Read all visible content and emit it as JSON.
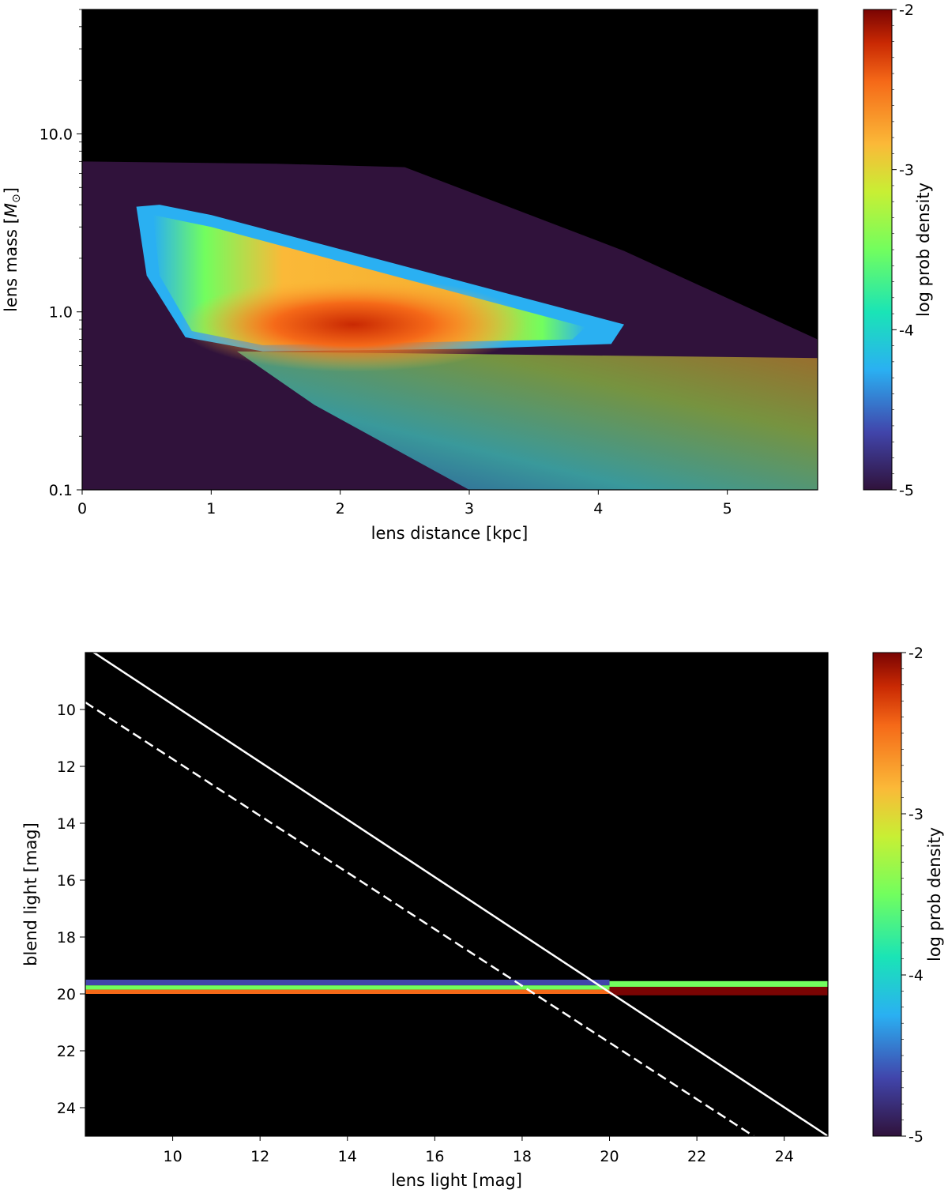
{
  "chart_data": [
    {
      "type": "heatmap",
      "title": "",
      "xlabel": "lens distance [kpc]",
      "ylabel": "lens mass [",
      "ylabel_symbol": "M",
      "ylabel_sub": "⊙",
      "ylabel_end": "]",
      "x_range": [
        0,
        5.7
      ],
      "y_range": [
        0.1,
        50
      ],
      "y_scale": "log",
      "x_ticks": [
        0,
        1,
        2,
        3,
        4,
        5
      ],
      "x_tick_labels": [
        "0",
        "1",
        "2",
        "3",
        "4",
        "5"
      ],
      "y_ticks": [
        0.1,
        1.0,
        10.0
      ],
      "y_tick_labels": [
        "0.1",
        "1.0",
        "10.0"
      ],
      "colorbar": {
        "label": "log prob density",
        "range": [
          -5,
          -2
        ],
        "ticks": [
          -2,
          -3,
          -4,
          -5
        ],
        "tick_labels": [
          "-2",
          "-3",
          "-4",
          "-5"
        ],
        "colormap": "turbo"
      },
      "features": [
        {
          "name": "main population peak",
          "x": 2.1,
          "y": 0.85,
          "log_density": -2.2
        },
        {
          "name": "high-mass ridge edge",
          "x_range": [
            0.4,
            4.2
          ],
          "y_range": [
            0.6,
            4.0
          ],
          "log_density": -4.2
        },
        {
          "name": "low-mass tail",
          "x_range": [
            1.2,
            5.7
          ],
          "y_range": [
            0.1,
            0.6
          ],
          "log_density": -3.8
        },
        {
          "name": "sparse background",
          "x_range": [
            0,
            5.7
          ],
          "y_range": [
            0.1,
            7
          ],
          "log_density": -5
        }
      ],
      "grid": false
    },
    {
      "type": "heatmap",
      "title": "",
      "xlabel": "lens light [mag]",
      "ylabel": "blend light [mag]",
      "x_range": [
        8,
        25
      ],
      "y_range": [
        8,
        25
      ],
      "y_inverted": true,
      "x_ticks": [
        10,
        12,
        14,
        16,
        18,
        20,
        22,
        24
      ],
      "x_tick_labels": [
        "10",
        "12",
        "14",
        "16",
        "18",
        "20",
        "22",
        "24"
      ],
      "y_ticks": [
        10,
        12,
        14,
        16,
        18,
        20,
        22,
        24
      ],
      "y_tick_labels": [
        "10",
        "12",
        "14",
        "16",
        "18",
        "20",
        "22",
        "24"
      ],
      "colorbar": {
        "label": "log prob density",
        "range": [
          -5,
          -2
        ],
        "ticks": [
          -2,
          -3,
          -4,
          -5
        ],
        "tick_labels": [
          "-2",
          "-3",
          "-4",
          "-5"
        ],
        "colormap": "turbo"
      },
      "bands": [
        {
          "x_range": [
            8,
            20
          ],
          "y_range": [
            19.5,
            19.7
          ],
          "log_density": -4.6
        },
        {
          "x_range": [
            8,
            20
          ],
          "y_range": [
            19.7,
            19.85
          ],
          "log_density": -3.6
        },
        {
          "x_range": [
            8,
            20
          ],
          "y_range": [
            19.85,
            20.0
          ],
          "log_density": -2.6
        },
        {
          "x_range": [
            20,
            25
          ],
          "y_range": [
            19.55,
            19.75
          ],
          "log_density": -3.8
        },
        {
          "x_range": [
            20,
            25
          ],
          "y_range": [
            19.75,
            20.05
          ],
          "log_density": -2.1
        }
      ],
      "lines": [
        {
          "style": "solid",
          "color": "#ffffff",
          "points": [
            [
              8,
              7.8
            ],
            [
              25,
              25
            ]
          ]
        },
        {
          "style": "dashed",
          "color": "#ffffff",
          "points": [
            [
              8,
              9.75
            ],
            [
              23.3,
              25
            ]
          ]
        }
      ],
      "grid": false
    }
  ]
}
